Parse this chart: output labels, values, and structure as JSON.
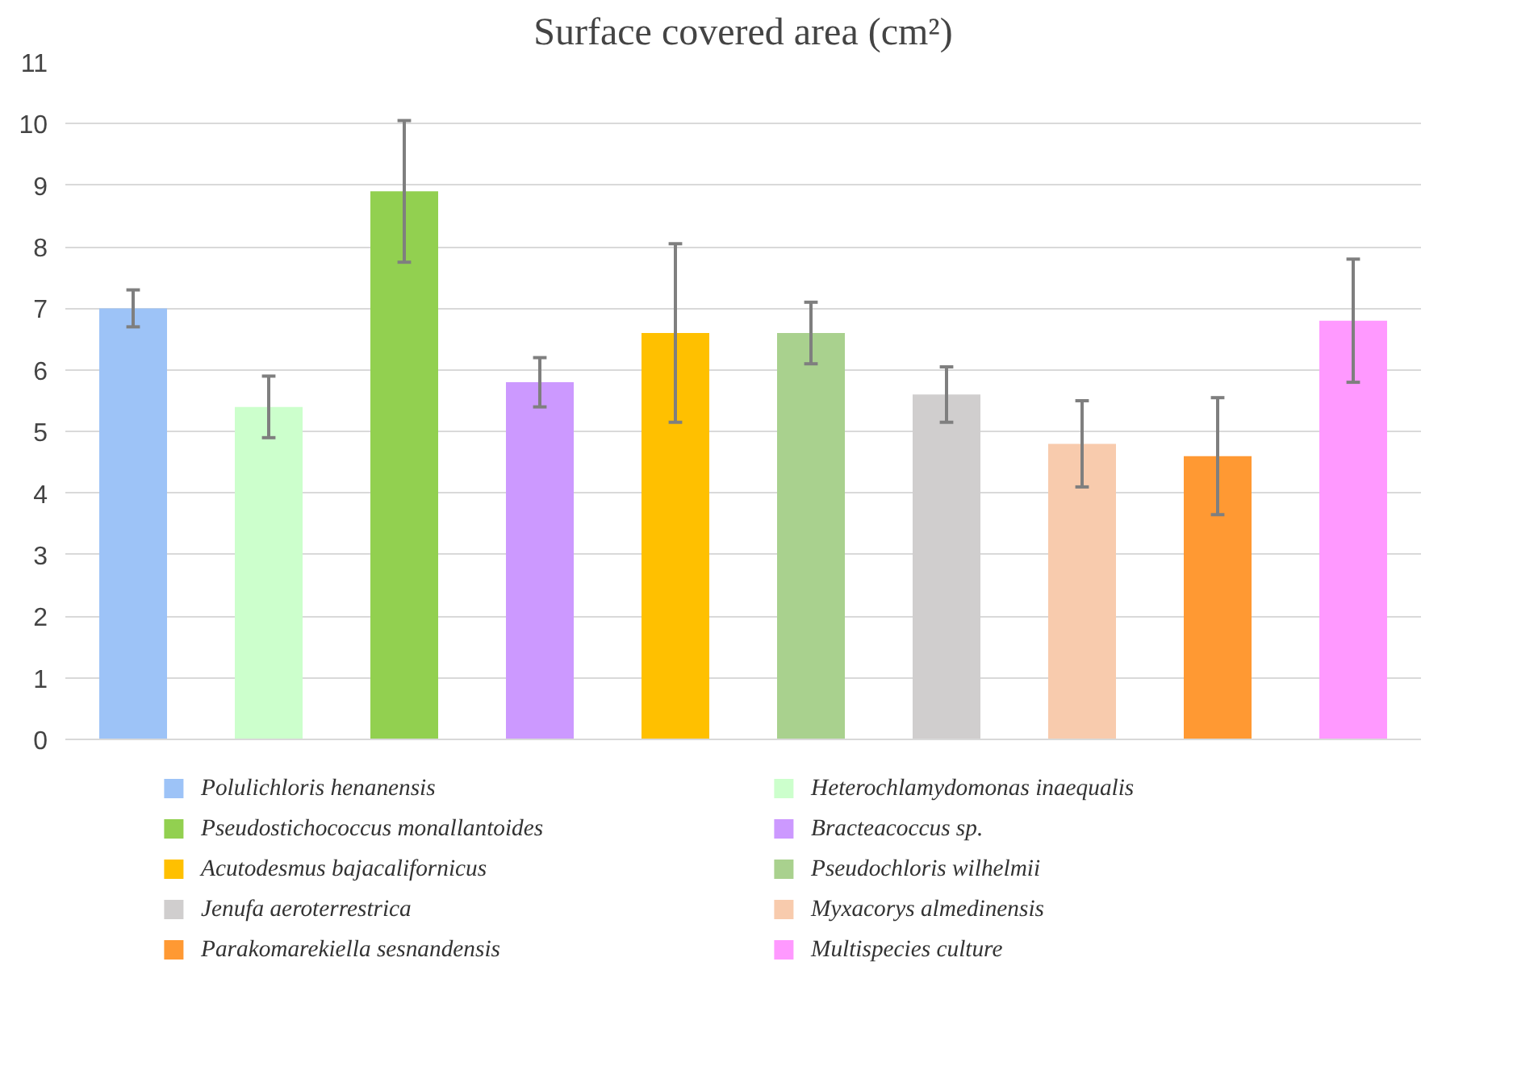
{
  "chart_data": {
    "type": "bar",
    "title": "Surface covered area (cm²)",
    "categories": [
      null,
      null,
      null,
      null,
      null,
      null,
      null,
      null,
      null,
      null
    ],
    "series": [
      {
        "name": "Polulichloris henanensis",
        "color": "#9dc3f7",
        "values": [
          7.0,
          null,
          null,
          null,
          null,
          null,
          null,
          null,
          null,
          null
        ],
        "errors": [
          0.3,
          null,
          null,
          null,
          null,
          null,
          null,
          null,
          null,
          null
        ]
      },
      {
        "name": "Heterochlamydomonas inaequalis",
        "color": "#ccffcc",
        "values": [
          null,
          5.4,
          null,
          null,
          null,
          null,
          null,
          null,
          null,
          null
        ],
        "errors": [
          null,
          0.5,
          null,
          null,
          null,
          null,
          null,
          null,
          null,
          null
        ]
      },
      {
        "name": "Pseudostichococcus monallantoides",
        "color": "#92d050",
        "values": [
          null,
          null,
          8.9,
          null,
          null,
          null,
          null,
          null,
          null,
          null
        ],
        "errors": [
          null,
          null,
          1.15,
          null,
          null,
          null,
          null,
          null,
          null,
          null
        ]
      },
      {
        "name": "Bracteacoccus sp.",
        "color": "#cc99ff",
        "values": [
          null,
          null,
          null,
          5.8,
          null,
          null,
          null,
          null,
          null,
          null
        ],
        "errors": [
          null,
          null,
          null,
          0.4,
          null,
          null,
          null,
          null,
          null,
          null
        ]
      },
      {
        "name": "Acutodesmus bajacalifornicus",
        "color": "#ffc000",
        "values": [
          null,
          null,
          null,
          null,
          6.6,
          null,
          null,
          null,
          null,
          null
        ],
        "errors": [
          null,
          null,
          null,
          null,
          1.45,
          null,
          null,
          null,
          null,
          null
        ]
      },
      {
        "name": "Pseudochloris wilhelmii",
        "color": "#a9d18e",
        "values": [
          null,
          null,
          null,
          null,
          null,
          6.6,
          null,
          null,
          null,
          null
        ],
        "errors": [
          null,
          null,
          null,
          null,
          null,
          0.5,
          null,
          null,
          null,
          null
        ]
      },
      {
        "name": "Jenufa aeroterrestrica",
        "color": "#d0cece",
        "values": [
          null,
          null,
          null,
          null,
          null,
          null,
          5.6,
          null,
          null,
          null
        ],
        "errors": [
          null,
          null,
          null,
          null,
          null,
          null,
          0.45,
          null,
          null,
          null
        ]
      },
      {
        "name": "Myxacorys almedinensis",
        "color": "#f8cbad",
        "values": [
          null,
          null,
          null,
          null,
          null,
          null,
          null,
          4.8,
          null,
          null
        ],
        "errors": [
          null,
          null,
          null,
          null,
          null,
          null,
          null,
          0.7,
          null,
          null
        ]
      },
      {
        "name": "Parakomarekiella sesnandensis",
        "color": "#ff9933",
        "values": [
          null,
          null,
          null,
          null,
          null,
          null,
          null,
          null,
          4.6,
          null
        ],
        "errors": [
          null,
          null,
          null,
          null,
          null,
          null,
          null,
          null,
          0.95,
          null
        ]
      },
      {
        "name": "Multispecies culture",
        "color": "#ff99ff",
        "values": [
          null,
          null,
          null,
          null,
          null,
          null,
          null,
          null,
          null,
          6.8
        ],
        "errors": [
          null,
          null,
          null,
          null,
          null,
          null,
          null,
          null,
          null,
          1.0
        ]
      }
    ],
    "ylim": [
      0,
      11
    ],
    "yticks": [
      0,
      1,
      2,
      3,
      4,
      5,
      6,
      7,
      8,
      9,
      10,
      11
    ],
    "grid": "y",
    "legend": "bottom"
  }
}
